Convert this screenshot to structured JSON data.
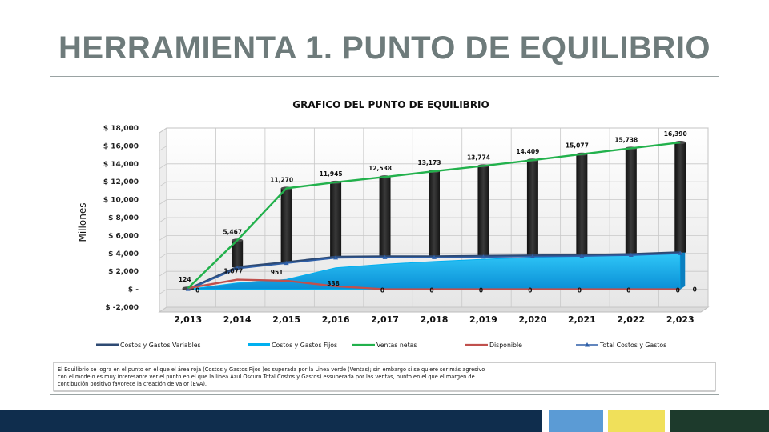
{
  "slide": {
    "title": "HERRAMIENTA 1. PUNTO DE EQUILIBRIO"
  },
  "note": {
    "line1": "El Equilibrio se logra en el punto en el que el área roja  (Costos y Gastos Fijos )es superada por la Linea verde (Ventas); sin embargo  si se quiere ser más agresivo",
    "line2": "con el modelo es muy interesante ver el punto en el que  la linea Azul  Oscuro Total Costos y Gastos)  essuperada por las ventas, punto en el que el margen de",
    "line3": "contibución positivo favorece la creación de valor  (EVA)."
  },
  "colors": {
    "title": "#6e7b7b",
    "ventas": "#22b14c",
    "fijos": "#00b0f0",
    "variables": "#2e4a73",
    "disponible": "#c0504d",
    "total": "#2e5fa8",
    "bars": "#2b2b2b",
    "footer_navy": "#0f2d4d",
    "footer_blue": "#5b9bd5",
    "footer_yellow": "#f0e05a",
    "footer_green": "#1d3a2c"
  },
  "chart_data": {
    "type": "line",
    "title": "GRAFICO DEL PUNTO DE EQUILIBRIO",
    "ylabel": "Millones",
    "ylim": [
      -2000,
      18000
    ],
    "yticks": [
      -2000,
      0,
      2000,
      4000,
      6000,
      8000,
      10000,
      12000,
      14000,
      16000,
      18000
    ],
    "ytick_labels": [
      "$ -2,000",
      "$ -",
      "$ 2,000",
      "$ 4,000",
      "$ 6,000",
      "$ 8,000",
      "$ 10,000",
      "$ 12,000",
      "$ 14,000",
      "$ 16,000",
      "$ 18,000"
    ],
    "categories": [
      "2,013",
      "2,014",
      "2,015",
      "2,016",
      "2,017",
      "2,018",
      "2,019",
      "2,020",
      "2,021",
      "2,022",
      "2,023"
    ],
    "grid": true,
    "legend_position": "bottom",
    "series": [
      {
        "name": "Ventas netas",
        "kind": "line",
        "values": [
          124,
          5467,
          11270,
          11945,
          12538,
          13173,
          13774,
          14409,
          15077,
          15738,
          16390
        ],
        "labels": [
          "124",
          "5,467",
          "11,270",
          "11,945",
          "12,538",
          "13,173",
          "13,774",
          "14,409",
          "15,077",
          "15,738",
          "16,390"
        ]
      },
      {
        "name": "Costos y Gastos Fijos",
        "kind": "area",
        "values": [
          0,
          700,
          1100,
          2400,
          2800,
          3100,
          3350,
          3550,
          3700,
          3850,
          3950
        ]
      },
      {
        "name": "Costos y Gastos Variables",
        "kind": "line",
        "values": [
          0,
          2450,
          3000,
          3600,
          3650,
          3650,
          3700,
          3750,
          3800,
          3900,
          4100
        ]
      },
      {
        "name": "Total Costos y Gastos",
        "kind": "line",
        "values": [
          0,
          2300,
          2900,
          3500,
          3550,
          3550,
          3600,
          3650,
          3700,
          3800,
          4000
        ]
      },
      {
        "name": "Disponible",
        "kind": "line",
        "values": [
          124,
          1077,
          951,
          338,
          0,
          0,
          0,
          0,
          0,
          0,
          0
        ],
        "labels": [
          "",
          "1,077",
          "951",
          "338",
          "0",
          "0",
          "0",
          "0",
          "0",
          "0",
          "0"
        ]
      }
    ],
    "bars": {
      "low": [
        0,
        2450,
        3000,
        3600,
        3650,
        3650,
        3700,
        3750,
        3800,
        3900,
        4100
      ],
      "high": [
        124,
        5467,
        11270,
        11945,
        12538,
        13173,
        13774,
        14409,
        15077,
        15738,
        16390
      ]
    },
    "zero_marker_label": "0",
    "legend": [
      "Costos y Gastos Variables",
      "Costos y Gastos Fijos",
      "Ventas netas",
      "Disponible",
      "Total Costos y Gastos"
    ]
  }
}
